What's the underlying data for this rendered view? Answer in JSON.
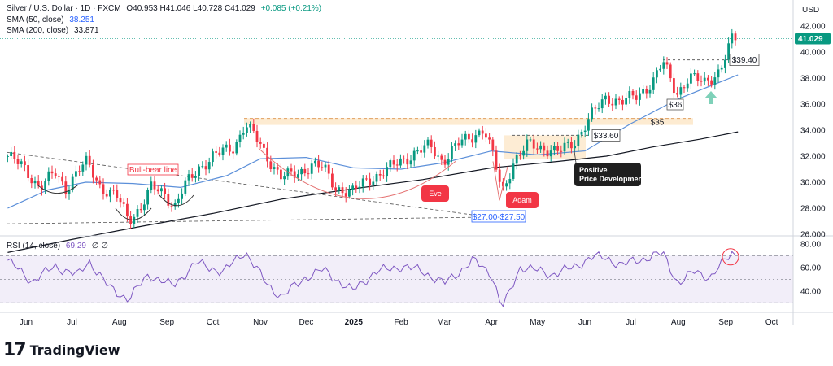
{
  "header": {
    "symbol": "Silver / U.S. Dollar · 1D · FXCM",
    "ohlc": "O40.953  H41.046  L40.728  C41.029",
    "change": "+0.085 (+0.21%)",
    "sma50_label": "SMA (50, close)",
    "sma50_value": "38.251",
    "sma200_label": "SMA (200, close)",
    "sma200_value": "33.871",
    "currency": "USD"
  },
  "rsi": {
    "label": "RSI (14, close)",
    "value": "69.29",
    "extra": "∅  ∅"
  },
  "logo": {
    "text": "TradingView"
  },
  "colors": {
    "up": "#089981",
    "down": "#f23645",
    "sma50": "#5b8fd9",
    "sma200": "#131722",
    "rsi": "#7e57c2",
    "rsi_band": "#ede7f6",
    "last_price_bg": "#089981",
    "arc": "#e57373"
  },
  "chart_data": {
    "type": "candlestick",
    "x_axis_labels": [
      "Jun",
      "Jul",
      "Aug",
      "Sep",
      "Oct",
      "Nov",
      "Dec",
      "2025",
      "Feb",
      "Mar",
      "Apr",
      "May",
      "Jun",
      "Jul",
      "Aug",
      "Sep",
      "Oct"
    ],
    "y_axis_ticks": [
      "42.000",
      "40.000",
      "38.000",
      "36.000",
      "34.000",
      "32.000",
      "30.000",
      "28.000",
      "26.000"
    ],
    "ylim": [
      26,
      42
    ],
    "last_price": "41.029",
    "price_series": [
      [
        "2024-05-20",
        32.0
      ],
      [
        "2024-05-30",
        31.2
      ],
      [
        "2024-06-10",
        29.6
      ],
      [
        "2024-06-20",
        30.7
      ],
      [
        "2024-06-27",
        29.5
      ],
      [
        "2024-07-05",
        30.9
      ],
      [
        "2024-07-11",
        31.5
      ],
      [
        "2024-07-20",
        29.6
      ],
      [
        "2024-07-31",
        28.8
      ],
      [
        "2024-08-07",
        27.1
      ],
      [
        "2024-08-15",
        28.1
      ],
      [
        "2024-08-22",
        29.6
      ],
      [
        "2024-08-31",
        29.1
      ],
      [
        "2024-09-06",
        28.1
      ],
      [
        "2024-09-12",
        29.6
      ],
      [
        "2024-09-22",
        31.1
      ],
      [
        "2024-10-01",
        32.0
      ],
      [
        "2024-10-15",
        32.7
      ],
      [
        "2024-10-22",
        34.5
      ],
      [
        "2024-10-28",
        33.6
      ],
      [
        "2024-11-05",
        32.0
      ],
      [
        "2024-11-15",
        30.4
      ],
      [
        "2024-11-25",
        30.6
      ],
      [
        "2024-12-05",
        31.4
      ],
      [
        "2024-12-12",
        31.1
      ],
      [
        "2024-12-20",
        29.6
      ],
      [
        "2024-12-31",
        29.2
      ],
      [
        "2025-01-10",
        30.2
      ],
      [
        "2025-01-20",
        30.7
      ],
      [
        "2025-01-31",
        31.6
      ],
      [
        "2025-02-10",
        32.2
      ],
      [
        "2025-02-20",
        32.8
      ],
      [
        "2025-02-28",
        31.6
      ],
      [
        "2025-03-10",
        32.9
      ],
      [
        "2025-03-20",
        33.6
      ],
      [
        "2025-03-27",
        34.1
      ],
      [
        "2025-04-03",
        31.6
      ],
      [
        "2025-04-08",
        29.2
      ],
      [
        "2025-04-15",
        31.5
      ],
      [
        "2025-04-25",
        32.9
      ],
      [
        "2025-05-06",
        32.6
      ],
      [
        "2025-05-15",
        32.3
      ],
      [
        "2025-05-25",
        33.1
      ],
      [
        "2025-06-05",
        35.1
      ],
      [
        "2025-06-15",
        36.5
      ],
      [
        "2025-06-25",
        36.2
      ],
      [
        "2025-07-05",
        36.6
      ],
      [
        "2025-07-15",
        37.7
      ],
      [
        "2025-07-22",
        39.2
      ],
      [
        "2025-07-31",
        36.8
      ],
      [
        "2025-08-08",
        38.1
      ],
      [
        "2025-08-18",
        37.6
      ],
      [
        "2025-08-28",
        38.6
      ],
      [
        "2025-09-05",
        40.9
      ],
      [
        "2025-09-09",
        41.03
      ]
    ],
    "sma50_series": [
      [
        "2024-05-20",
        28.0
      ],
      [
        "2024-06-15",
        29.4
      ],
      [
        "2024-07-10",
        30.0
      ],
      [
        "2024-08-10",
        29.9
      ],
      [
        "2024-09-10",
        29.6
      ],
      [
        "2024-10-10",
        30.5
      ],
      [
        "2024-11-01",
        31.8
      ],
      [
        "2024-12-01",
        31.9
      ],
      [
        "2025-01-01",
        31.1
      ],
      [
        "2025-02-01",
        31.0
      ],
      [
        "2025-03-01",
        31.5
      ],
      [
        "2025-04-01",
        32.4
      ],
      [
        "2025-05-01",
        32.1
      ],
      [
        "2025-06-01",
        32.4
      ],
      [
        "2025-07-01",
        34.5
      ],
      [
        "2025-08-01",
        36.4
      ],
      [
        "2025-09-09",
        38.25
      ]
    ],
    "sma200_series": [
      [
        "2024-05-20",
        24.6
      ],
      [
        "2024-07-01",
        25.6
      ],
      [
        "2024-08-15",
        26.6
      ],
      [
        "2024-10-01",
        27.6
      ],
      [
        "2024-11-15",
        28.7
      ],
      [
        "2025-01-01",
        29.5
      ],
      [
        "2025-02-15",
        30.2
      ],
      [
        "2025-04-01",
        31.1
      ],
      [
        "2025-05-15",
        31.6
      ],
      [
        "2025-06-15",
        32.0
      ],
      [
        "2025-07-15",
        32.7
      ],
      [
        "2025-08-15",
        33.3
      ],
      [
        "2025-09-09",
        33.87
      ]
    ],
    "rsi_series": [
      [
        "2024-05-20",
        66
      ],
      [
        "2024-06-05",
        48
      ],
      [
        "2024-06-20",
        61
      ],
      [
        "2024-07-05",
        53
      ],
      [
        "2024-07-12",
        66
      ],
      [
        "2024-07-25",
        43
      ],
      [
        "2024-08-07",
        33
      ],
      [
        "2024-08-20",
        54
      ],
      [
        "2024-09-05",
        44
      ],
      [
        "2024-09-20",
        64
      ],
      [
        "2024-10-08",
        56
      ],
      [
        "2024-10-22",
        74
      ],
      [
        "2024-11-05",
        46
      ],
      [
        "2024-11-15",
        35
      ],
      [
        "2024-12-01",
        52
      ],
      [
        "2024-12-12",
        58
      ],
      [
        "2024-12-31",
        40
      ],
      [
        "2025-01-15",
        56
      ],
      [
        "2025-02-01",
        61
      ],
      [
        "2025-02-15",
        57
      ],
      [
        "2025-03-01",
        46
      ],
      [
        "2025-03-20",
        66
      ],
      [
        "2025-04-01",
        55
      ],
      [
        "2025-04-08",
        24
      ],
      [
        "2025-04-20",
        61
      ],
      [
        "2025-05-10",
        54
      ],
      [
        "2025-05-25",
        60
      ],
      [
        "2025-06-05",
        69
      ],
      [
        "2025-06-15",
        68
      ],
      [
        "2025-06-25",
        62
      ],
      [
        "2025-07-05",
        66
      ],
      [
        "2025-07-22",
        72
      ],
      [
        "2025-08-01",
        46
      ],
      [
        "2025-08-12",
        57
      ],
      [
        "2025-08-22",
        51
      ],
      [
        "2025-09-05",
        73
      ],
      [
        "2025-09-09",
        69.29
      ]
    ],
    "rsi_axis_ticks": [
      "80.00",
      "60.00",
      "40.00"
    ],
    "rsi_ylim": [
      26,
      82
    ],
    "rsi_bands": [
      70,
      30
    ],
    "annotations": {
      "bull_bear_label": "Bull-bear line",
      "eve_label": "Eve",
      "adam_label": "Adam",
      "zone_label": "$27.00-$27.50",
      "level_35_label": "$35",
      "level_3360_label": "$33.60",
      "level_3940_label": "$39.40",
      "level_36_label": "$36",
      "positive_label_line1": "Positive",
      "positive_label_line2": "Price Development"
    }
  }
}
